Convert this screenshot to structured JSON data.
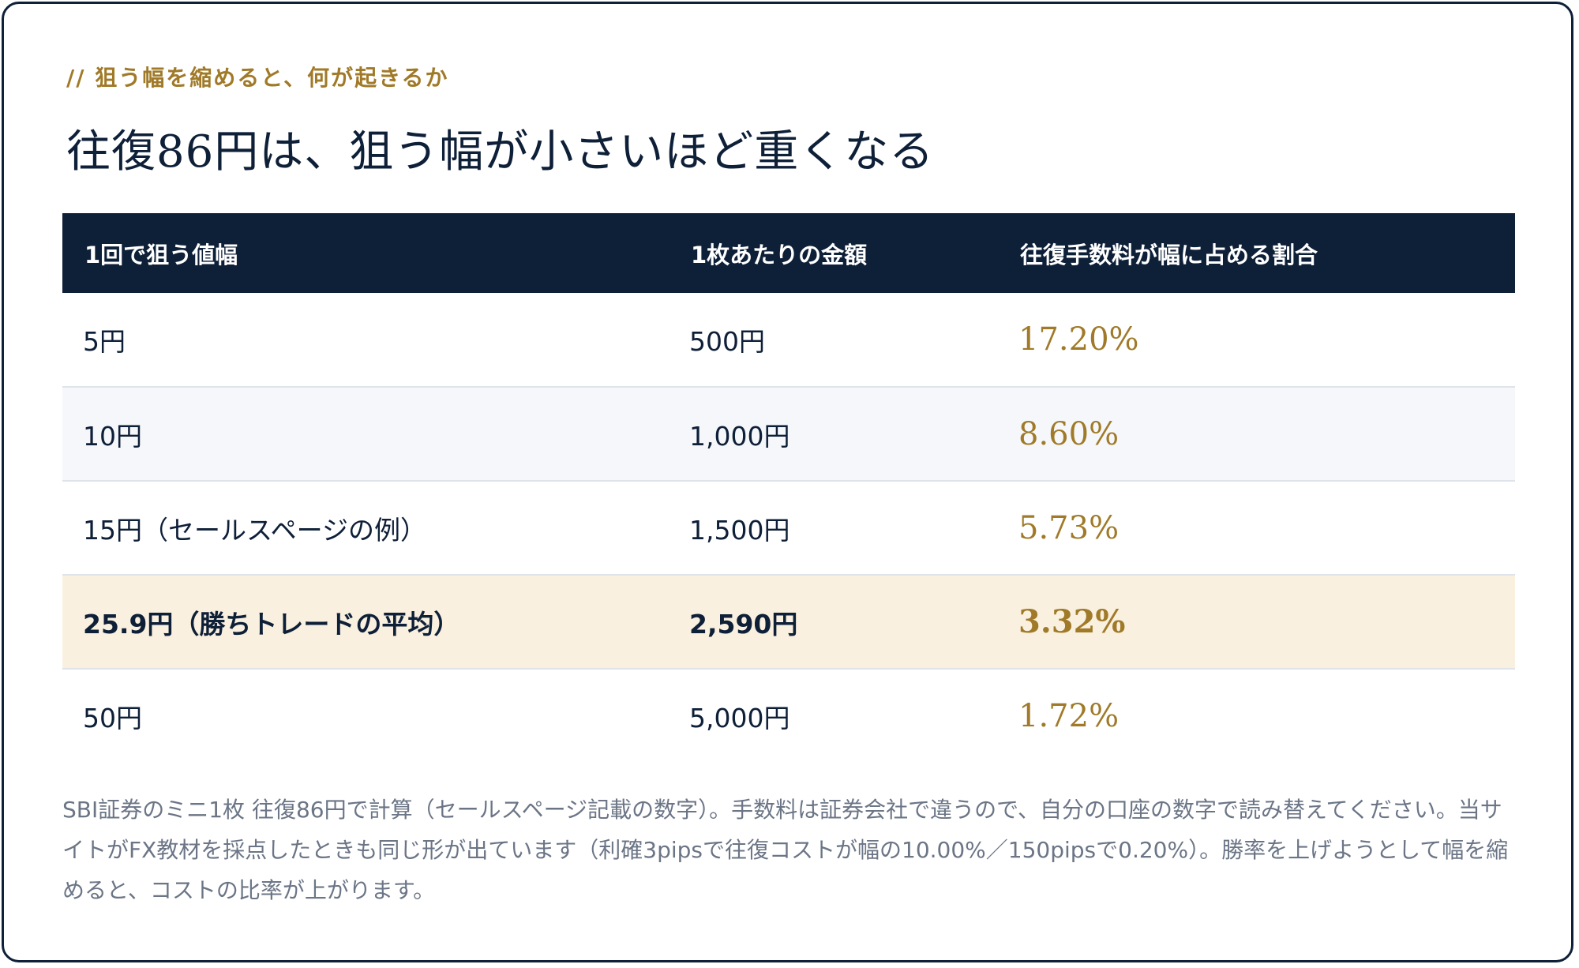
{
  "section": {
    "kicker": "// 狙う幅を縮めると、何が起きるか",
    "title": "往復86円は、狙う幅が小さいほど重くなる"
  },
  "table": {
    "headers": [
      "1回で狙う値幅",
      "1枚あたりの金額",
      "往復手数料が幅に占める割合"
    ],
    "rows": [
      {
        "width": "5円",
        "amount": "500円",
        "ratio": "17.20%"
      },
      {
        "width": "10円",
        "amount": "1,000円",
        "ratio": "8.60%"
      },
      {
        "width": "15円（セールスページの例）",
        "amount": "1,500円",
        "ratio": "5.73%"
      },
      {
        "width": "25.9円（勝ちトレードの平均）",
        "amount": "2,590円",
        "ratio": "3.32%"
      },
      {
        "width": "50円",
        "amount": "5,000円",
        "ratio": "1.72%"
      }
    ],
    "highlighted_row": 3
  },
  "note": "SBI証券のミニ1枚 往復86円で計算（セールスページ記載の数字）。手数料は証券会社で違うので、自分の口座の数字で読み替えてください。当サイトがFX教材を採点したときも同じ形が出ています（利確3pipsで往復コストが幅の10.00%／150pipsで0.20%）。勝率を上げようとして幅を縮めると、コストの比率が上がります。",
  "colors": {
    "navy": "#0e1f38",
    "gold": "#a07a28",
    "highlight_row_bg": "#f9f0df",
    "alt_row_bg": "#f5f7fa",
    "note_text": "#6b7586"
  }
}
